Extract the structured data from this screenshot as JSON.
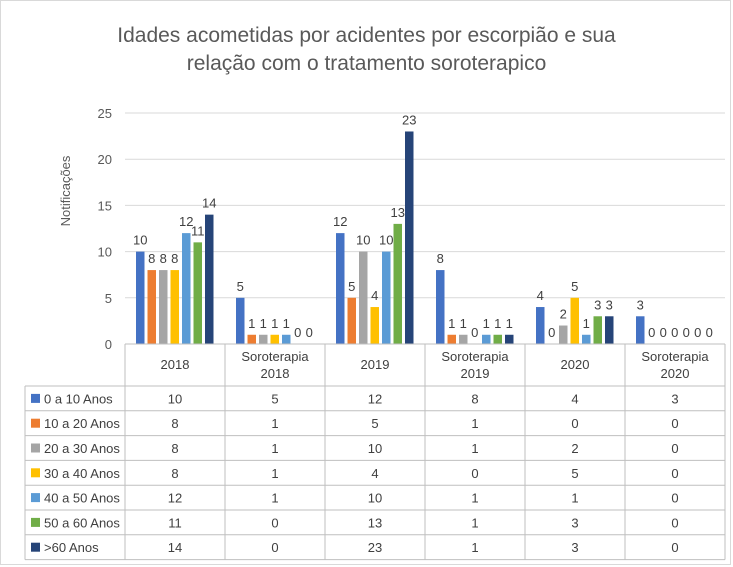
{
  "chart_data": {
    "type": "bar",
    "title": [
      "Idades acometidas por acidentes por escorpião e sua",
      "relação com o tratamento soroterapico"
    ],
    "ylabel": "Notificações",
    "xlabel": "",
    "ylim": [
      0,
      25
    ],
    "yticks": [
      0,
      5,
      10,
      15,
      20,
      25
    ],
    "grid": true,
    "legend": "data-table",
    "categories": [
      [
        "2018"
      ],
      [
        "Soroterapia",
        "2018"
      ],
      [
        "2019"
      ],
      [
        "Soroterapia",
        "2019"
      ],
      [
        "2020"
      ],
      [
        "Soroterapia",
        "2020"
      ]
    ],
    "series": [
      {
        "name": "0 a 10 Anos",
        "color": "#4472c4",
        "values": [
          10,
          5,
          12,
          8,
          4,
          3
        ]
      },
      {
        "name": "10 a 20 Anos",
        "color": "#ed7d31",
        "values": [
          8,
          1,
          5,
          1,
          0,
          0
        ]
      },
      {
        "name": "20 a 30 Anos",
        "color": "#a5a5a5",
        "values": [
          8,
          1,
          10,
          1,
          2,
          0
        ]
      },
      {
        "name": "30 a 40 Anos",
        "color": "#ffc000",
        "values": [
          8,
          1,
          4,
          0,
          5,
          0
        ]
      },
      {
        "name": "40 a 50 Anos",
        "color": "#5b9bd5",
        "values": [
          12,
          1,
          10,
          1,
          1,
          0
        ]
      },
      {
        "name": "50 a 60 Anos",
        "color": "#70ad47",
        "values": [
          11,
          0,
          13,
          1,
          3,
          0
        ]
      },
      {
        "name": ">60 Anos",
        "color": "#264478",
        "values": [
          14,
          0,
          23,
          1,
          3,
          0
        ]
      }
    ]
  }
}
